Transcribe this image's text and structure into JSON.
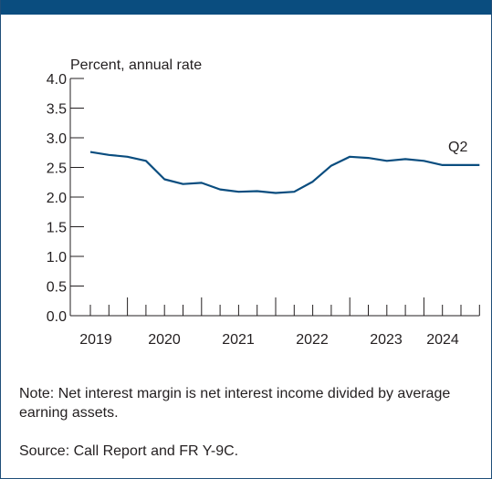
{
  "chart_data": {
    "type": "line",
    "unit_label": "Percent, annual rate",
    "ylim": [
      0.0,
      4.0
    ],
    "y_ticks": [
      "0.0",
      "0.5",
      "1.0",
      "1.5",
      "2.0",
      "2.5",
      "3.0",
      "3.5",
      "4.0"
    ],
    "x_tick_labels": [
      "2019",
      "2020",
      "2021",
      "2022",
      "2023",
      "2024"
    ],
    "end_label": "Q2",
    "grid": false,
    "line_color": "#0a4d7f",
    "series": [
      {
        "x": [
          "2019 Q1",
          "2019 Q2",
          "2019 Q3",
          "2019 Q4",
          "2020 Q1",
          "2020 Q2",
          "2020 Q3",
          "2020 Q4",
          "2021 Q1",
          "2021 Q2",
          "2021 Q3",
          "2021 Q4",
          "2022 Q1",
          "2022 Q2",
          "2022 Q3",
          "2022 Q4",
          "2023 Q1",
          "2023 Q2",
          "2023 Q3",
          "2023 Q4",
          "2024 Q1",
          "2024 Q2"
        ],
        "values": [
          2.76,
          2.71,
          2.68,
          2.61,
          2.3,
          2.22,
          2.24,
          2.13,
          2.09,
          2.1,
          2.07,
          2.09,
          2.26,
          2.53,
          2.68,
          2.66,
          2.61,
          2.64,
          2.61,
          2.54,
          2.54,
          2.54
        ]
      }
    ]
  },
  "notes": {
    "note": "Note: Net interest margin is net interest income divided by average earning assets.",
    "source": "Source: Call Report and FR Y-9C."
  }
}
